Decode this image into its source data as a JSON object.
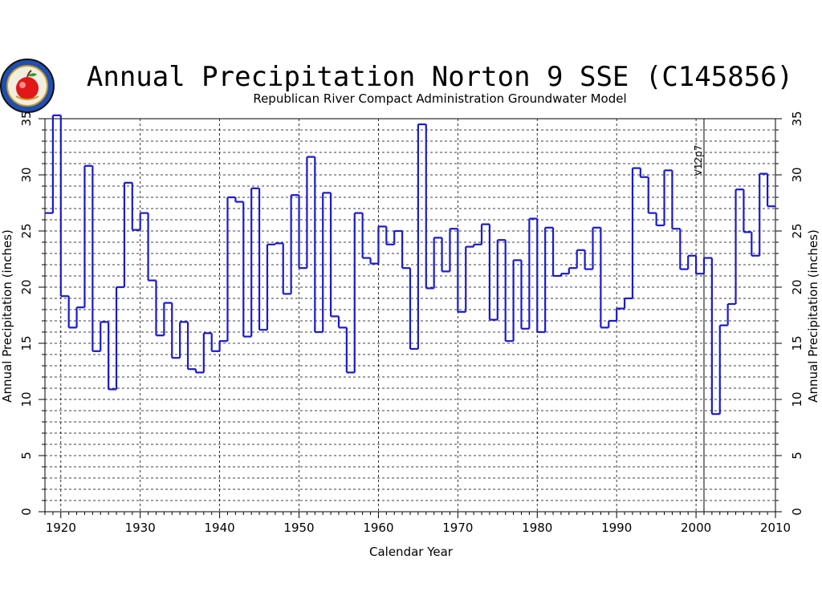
{
  "chart_data": {
    "type": "step",
    "title": "Annual Precipitation Norton 9 SSE (C145856)",
    "subtitle": "Republican River Compact Administration Groundwater Model",
    "xlabel": "Calendar Year",
    "ylabel": "Annual Precipitation (inches)",
    "xlim": [
      1918,
      2010
    ],
    "ylim": [
      0,
      35
    ],
    "x_ticks": [
      1920,
      1930,
      1940,
      1950,
      1960,
      1970,
      1980,
      1990,
      2000,
      2010
    ],
    "y_ticks": [
      0,
      5,
      10,
      15,
      20,
      25,
      30,
      35
    ],
    "grid": true,
    "annotation": {
      "label": "V12p7",
      "x": 2001
    },
    "series": [
      {
        "x": [
          1918,
          1919,
          1920,
          1921,
          1922,
          1923,
          1924,
          1925,
          1926,
          1927,
          1928,
          1929,
          1930,
          1931,
          1932,
          1933,
          1934,
          1935,
          1936,
          1937,
          1938,
          1939,
          1940,
          1941,
          1942,
          1943,
          1944,
          1945,
          1946,
          1947,
          1948,
          1949,
          1950,
          1951,
          1952,
          1953,
          1954,
          1955,
          1956,
          1957,
          1958,
          1959,
          1960,
          1961,
          1962,
          1963,
          1964,
          1965,
          1966,
          1967,
          1968,
          1969,
          1970,
          1971,
          1972,
          1973,
          1974,
          1975,
          1976,
          1977,
          1978,
          1979,
          1980,
          1981,
          1982,
          1983,
          1984,
          1985,
          1986,
          1987,
          1988,
          1989,
          1990,
          1991,
          1992,
          1993,
          1994,
          1995,
          1996,
          1997,
          1998,
          1999,
          2000,
          2001,
          2002,
          2003,
          2004,
          2005,
          2006,
          2007,
          2008,
          2009
        ],
        "values": [
          26.6,
          35.3,
          19.2,
          16.4,
          18.2,
          30.8,
          14.3,
          16.9,
          10.9,
          20.0,
          29.3,
          25.1,
          26.6,
          20.6,
          15.7,
          18.6,
          13.7,
          16.9,
          12.7,
          12.4,
          15.9,
          14.3,
          15.2,
          28.0,
          27.6,
          15.6,
          28.8,
          16.2,
          23.8,
          23.9,
          19.4,
          28.2,
          21.7,
          31.6,
          16.0,
          28.4,
          17.4,
          16.4,
          12.4,
          26.6,
          22.6,
          22.1,
          25.4,
          23.8,
          25.0,
          21.7,
          14.5,
          34.5,
          19.9,
          24.4,
          21.4,
          25.2,
          17.8,
          23.6,
          23.8,
          25.6,
          17.1,
          24.2,
          15.2,
          22.4,
          16.3,
          26.1,
          16.0,
          25.3,
          21.0,
          21.2,
          21.7,
          23.3,
          21.6,
          25.3,
          16.4,
          17.0,
          18.1,
          19.0,
          30.6,
          29.8,
          26.6,
          25.5,
          30.4,
          25.2,
          21.6,
          22.8,
          21.2,
          22.6,
          8.7,
          16.6,
          18.5,
          28.7,
          24.9,
          22.8,
          30.1,
          27.2
        ]
      }
    ]
  }
}
